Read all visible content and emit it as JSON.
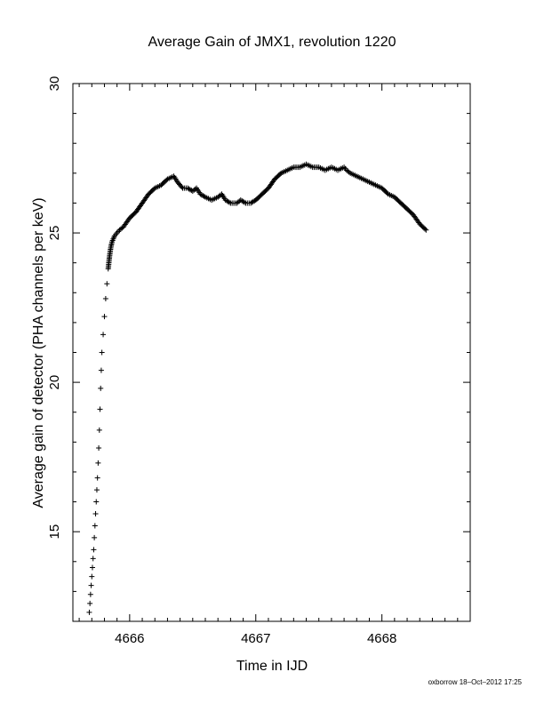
{
  "chart_data": {
    "type": "scatter",
    "title": "Average Gain of JMX1, revolution 1220",
    "xlabel": "Time in IJD",
    "ylabel": "Average gain of detector (PHA channels per keV)",
    "xlim": [
      4665.55,
      4668.7
    ],
    "ylim": [
      12,
      30
    ],
    "xticks": [
      4666,
      4667,
      4668
    ],
    "yticks": [
      15,
      20,
      25,
      30
    ],
    "grid": false,
    "marker": "plus",
    "footer": "oxborrow 18–Oct–2012 17:25",
    "series": [
      {
        "x": [
          4665.68,
          4665.685,
          4665.69,
          4665.695,
          4665.7,
          4665.705,
          4665.71,
          4665.715,
          4665.72,
          4665.725,
          4665.73,
          4665.735,
          4665.74,
          4665.745,
          4665.75,
          4665.755,
          4665.76,
          4665.765,
          4665.77,
          4665.775,
          4665.78,
          4665.79,
          4665.8,
          4665.81,
          4665.82,
          4665.83,
          4665.84,
          4665.85,
          4665.86,
          4665.88,
          4665.9,
          4665.92,
          4665.95,
          4666.0,
          4666.05,
          4666.1,
          4666.15,
          4666.2,
          4666.25,
          4666.3,
          4666.35,
          4666.38,
          4666.42,
          4666.46,
          4666.5,
          4666.53,
          4666.56,
          4666.6,
          4666.65,
          4666.7,
          4666.73,
          4666.76,
          4666.8,
          4666.85,
          4666.88,
          4666.92,
          4666.96,
          4667.0,
          4667.05,
          4667.1,
          4667.15,
          4667.2,
          4667.25,
          4667.3,
          4667.35,
          4667.4,
          4667.45,
          4667.5,
          4667.55,
          4667.6,
          4667.65,
          4667.7,
          4667.72,
          4667.75,
          4667.8,
          4667.85,
          4667.9,
          4667.95,
          4668.0,
          4668.05,
          4668.1,
          4668.15,
          4668.2,
          4668.25,
          4668.3,
          4668.35
        ],
        "y": [
          12.3,
          12.6,
          12.9,
          13.2,
          13.5,
          13.8,
          14.1,
          14.4,
          14.8,
          15.2,
          15.6,
          16.0,
          16.4,
          16.8,
          17.3,
          17.8,
          18.4,
          19.1,
          19.8,
          20.4,
          21.0,
          21.6,
          22.2,
          22.8,
          23.3,
          23.8,
          24.2,
          24.5,
          24.7,
          24.9,
          25.0,
          25.1,
          25.2,
          25.5,
          25.7,
          26.0,
          26.3,
          26.5,
          26.6,
          26.8,
          26.9,
          26.7,
          26.5,
          26.5,
          26.4,
          26.5,
          26.3,
          26.2,
          26.1,
          26.2,
          26.3,
          26.1,
          26.0,
          26.0,
          26.1,
          26.0,
          26.0,
          26.1,
          26.3,
          26.5,
          26.8,
          27.0,
          27.1,
          27.2,
          27.2,
          27.3,
          27.2,
          27.2,
          27.1,
          27.2,
          27.1,
          27.2,
          27.1,
          27.0,
          26.9,
          26.8,
          26.7,
          26.6,
          26.5,
          26.3,
          26.2,
          26.0,
          25.8,
          25.6,
          25.3,
          25.1
        ]
      }
    ]
  }
}
